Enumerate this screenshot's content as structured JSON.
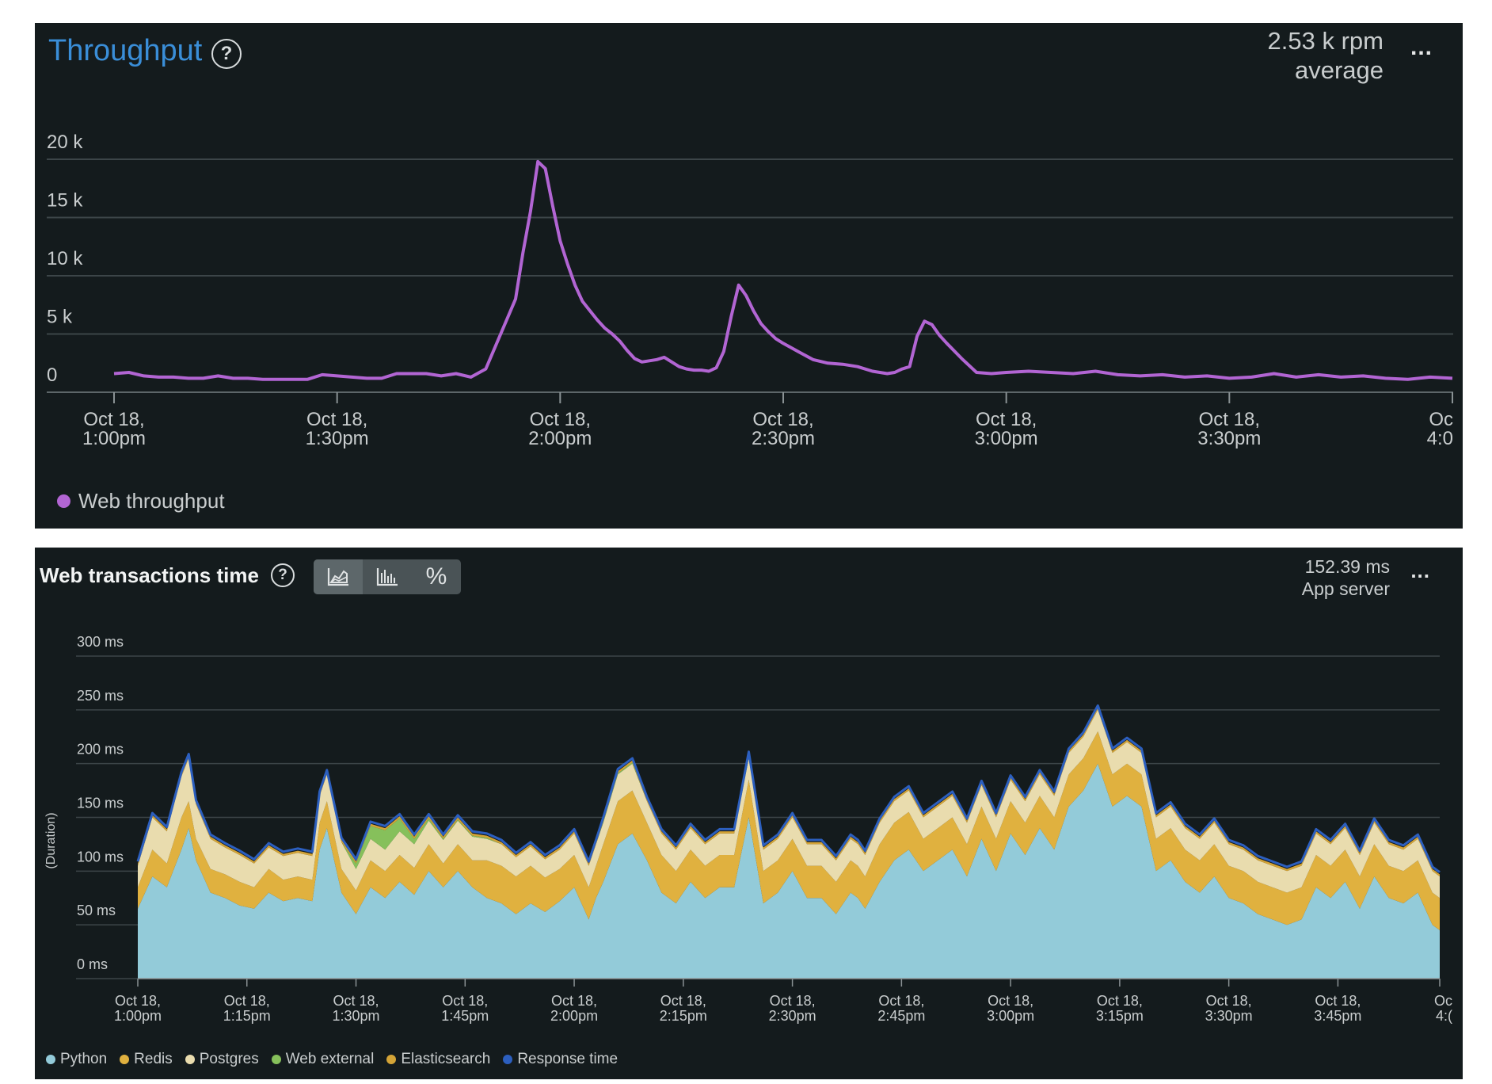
{
  "throughput_panel": {
    "title": "Throughput",
    "help_icon": "?",
    "summary_value": "2.53 k rpm",
    "summary_label": "average",
    "menu_label": "...",
    "legend": [
      {
        "label": "Web throughput",
        "color": "#b265d3"
      }
    ]
  },
  "webtx_panel": {
    "title": "Web transactions time",
    "help_icon": "?",
    "toggle_icons": [
      "area-chart-icon",
      "histogram-icon",
      "percent-icon"
    ],
    "toggle_percent_label": "%",
    "summary_value": "152.39 ms",
    "summary_label": "App server",
    "menu_label": "...",
    "legend": [
      {
        "label": "Python",
        "color": "#93cbd9"
      },
      {
        "label": "Redis",
        "color": "#e0b13f"
      },
      {
        "label": "Postgres",
        "color": "#e9dcae"
      },
      {
        "label": "Web external",
        "color": "#86c05b"
      },
      {
        "label": "Elasticsearch",
        "color": "#d4a437"
      },
      {
        "label": "Response time",
        "color": "#2c5fbf"
      }
    ]
  },
  "chart_data": [
    {
      "type": "line",
      "title": "Throughput",
      "ylabel": "",
      "ylim": [
        0,
        20000
      ],
      "y_ticks": [
        "20 k",
        "15 k",
        "10 k",
        "5 k",
        "0"
      ],
      "y_tick_values": [
        20000,
        15000,
        10000,
        5000,
        0
      ],
      "x_tick_labels": [
        [
          "Oct 18,",
          "1:00pm"
        ],
        [
          "Oct 18,",
          "1:30pm"
        ],
        [
          "Oct 18,",
          "2:00pm"
        ],
        [
          "Oct 18,",
          "2:30pm"
        ],
        [
          "Oct 18,",
          "3:00pm"
        ],
        [
          "Oct 18,",
          "3:30pm"
        ],
        [
          "Oc",
          "4:0"
        ]
      ],
      "x_tick_minutes": [
        0,
        30,
        60,
        90,
        120,
        150,
        180
      ],
      "x_range_minutes": [
        0,
        180
      ],
      "series": [
        {
          "name": "Web throughput",
          "color": "#b265d3",
          "x_minutes": [
            0,
            2,
            4,
            6,
            8,
            10,
            12,
            14,
            16,
            18,
            20,
            22,
            24,
            26,
            28,
            30,
            32,
            34,
            36,
            38,
            40,
            42,
            44,
            46,
            48,
            50,
            52,
            54,
            55,
            56,
            57,
            58,
            59,
            60,
            61,
            62,
            63,
            64,
            65,
            66,
            67,
            68,
            69,
            70,
            71,
            72,
            73,
            74,
            75,
            76,
            77,
            78,
            79,
            80,
            81,
            82,
            83,
            84,
            85,
            86,
            87,
            88,
            89,
            90,
            92,
            94,
            96,
            98,
            100,
            102,
            104,
            105,
            106,
            107,
            108,
            109,
            110,
            111,
            112,
            114,
            116,
            118,
            120,
            123,
            126,
            129,
            132,
            135,
            138,
            141,
            144,
            147,
            150,
            153,
            156,
            159,
            162,
            165,
            168,
            171,
            174,
            177,
            180
          ],
          "y": [
            1600,
            1700,
            1400,
            1300,
            1300,
            1200,
            1200,
            1400,
            1200,
            1200,
            1100,
            1100,
            1100,
            1100,
            1500,
            1400,
            1300,
            1200,
            1200,
            1600,
            1600,
            1600,
            1400,
            1600,
            1300,
            2000,
            5000,
            8000,
            12000,
            15500,
            19800,
            19200,
            16000,
            13000,
            11000,
            9200,
            7800,
            7000,
            6200,
            5500,
            5000,
            4400,
            3600,
            2900,
            2600,
            2700,
            2800,
            3000,
            2600,
            2200,
            2000,
            1900,
            1900,
            1800,
            2100,
            3500,
            6500,
            9200,
            8300,
            7000,
            5900,
            5200,
            4600,
            4200,
            3500,
            2800,
            2500,
            2400,
            2200,
            1800,
            1600,
            1700,
            2000,
            2200,
            4800,
            6100,
            5800,
            4900,
            4200,
            2900,
            1700,
            1600,
            1700,
            1800,
            1700,
            1600,
            1800,
            1500,
            1400,
            1500,
            1300,
            1400,
            1200,
            1300,
            1600,
            1300,
            1500,
            1300,
            1400,
            1200,
            1100,
            1300,
            1200
          ]
        }
      ]
    },
    {
      "type": "area",
      "title": "Web transactions time",
      "ylabel": "(Duration)",
      "ylim": [
        0,
        300
      ],
      "y_ticks": [
        "300 ms",
        "250 ms",
        "200 ms",
        "150 ms",
        "100 ms",
        "50 ms",
        "0 ms"
      ],
      "y_tick_values": [
        300,
        250,
        200,
        150,
        100,
        50,
        0
      ],
      "x_tick_labels": [
        [
          "Oct 18,",
          "1:00pm"
        ],
        [
          "Oct 18,",
          "1:15pm"
        ],
        [
          "Oct 18,",
          "1:30pm"
        ],
        [
          "Oct 18,",
          "1:45pm"
        ],
        [
          "Oct 18,",
          "2:00pm"
        ],
        [
          "Oct 18,",
          "2:15pm"
        ],
        [
          "Oct 18,",
          "2:30pm"
        ],
        [
          "Oct 18,",
          "2:45pm"
        ],
        [
          "Oct 18,",
          "3:00pm"
        ],
        [
          "Oct 18,",
          "3:15pm"
        ],
        [
          "Oct 18,",
          "3:30pm"
        ],
        [
          "Oct 18,",
          "3:45pm"
        ],
        [
          "Oc",
          "4:("
        ]
      ],
      "x_tick_minutes": [
        0,
        15,
        30,
        45,
        60,
        75,
        90,
        105,
        120,
        135,
        150,
        165,
        180
      ],
      "x_range_minutes": [
        0,
        179
      ],
      "stacked": true,
      "x_minutes": [
        0,
        2,
        4,
        6,
        7,
        8,
        10,
        12,
        14,
        16,
        18,
        20,
        22,
        24,
        25,
        26,
        28,
        30,
        32,
        34,
        36,
        38,
        40,
        42,
        44,
        46,
        48,
        50,
        52,
        54,
        56,
        58,
        60,
        62,
        63,
        64,
        66,
        68,
        70,
        72,
        74,
        76,
        78,
        80,
        82,
        84,
        86,
        88,
        90,
        92,
        94,
        96,
        98,
        99,
        100,
        102,
        104,
        106,
        108,
        110,
        112,
        114,
        116,
        118,
        120,
        122,
        124,
        126,
        128,
        130,
        132,
        134,
        136,
        138,
        140,
        142,
        144,
        146,
        148,
        150,
        152,
        154,
        156,
        158,
        160,
        162,
        164,
        166,
        168,
        170,
        172,
        174,
        176,
        178,
        179
      ],
      "series": [
        {
          "name": "Python",
          "color": "#93cbd9",
          "values": [
            65,
            95,
            85,
            120,
            140,
            110,
            80,
            75,
            68,
            65,
            80,
            72,
            75,
            72,
            120,
            140,
            80,
            60,
            85,
            75,
            90,
            78,
            100,
            85,
            100,
            85,
            75,
            70,
            60,
            70,
            62,
            72,
            85,
            55,
            75,
            90,
            125,
            135,
            110,
            80,
            70,
            90,
            75,
            85,
            85,
            150,
            70,
            80,
            100,
            75,
            75,
            60,
            80,
            75,
            65,
            90,
            110,
            120,
            100,
            110,
            120,
            95,
            130,
            100,
            135,
            115,
            140,
            120,
            160,
            175,
            200,
            160,
            170,
            160,
            100,
            110,
            90,
            80,
            95,
            75,
            70,
            60,
            55,
            50,
            55,
            85,
            75,
            90,
            65,
            95,
            75,
            70,
            80,
            50,
            45
          ]
        },
        {
          "name": "Redis",
          "color": "#e0b13f",
          "values": [
            20,
            25,
            22,
            30,
            25,
            20,
            22,
            22,
            22,
            20,
            22,
            20,
            20,
            20,
            25,
            25,
            22,
            22,
            25,
            25,
            25,
            25,
            25,
            22,
            25,
            25,
            35,
            35,
            35,
            35,
            32,
            30,
            30,
            30,
            30,
            35,
            40,
            40,
            35,
            35,
            30,
            30,
            30,
            30,
            30,
            35,
            30,
            30,
            30,
            30,
            30,
            30,
            30,
            30,
            30,
            35,
            35,
            35,
            30,
            30,
            30,
            30,
            30,
            30,
            30,
            30,
            30,
            30,
            30,
            30,
            30,
            30,
            30,
            30,
            30,
            30,
            30,
            30,
            30,
            30,
            30,
            30,
            30,
            30,
            30,
            30,
            30,
            30,
            30,
            30,
            30,
            30,
            30,
            30,
            30
          ]
        },
        {
          "name": "Postgres",
          "color": "#e9dcae",
          "values": [
            20,
            30,
            30,
            38,
            40,
            32,
            28,
            25,
            25,
            22,
            20,
            22,
            22,
            22,
            25,
            25,
            25,
            20,
            20,
            20,
            22,
            22,
            22,
            22,
            22,
            22,
            20,
            20,
            18,
            18,
            17,
            18,
            20,
            20,
            20,
            20,
            25,
            25,
            20,
            20,
            20,
            20,
            20,
            20,
            20,
            20,
            20,
            20,
            20,
            20,
            20,
            20,
            20,
            20,
            20,
            20,
            20,
            20,
            20,
            20,
            20,
            20,
            20,
            20,
            20,
            20,
            20,
            20,
            20,
            20,
            20,
            20,
            20,
            20,
            20,
            20,
            20,
            20,
            20,
            20,
            20,
            20,
            20,
            20,
            20,
            20,
            20,
            20,
            20,
            20,
            20,
            20,
            20,
            20,
            20
          ]
        },
        {
          "name": "Web external",
          "color": "#86c05b",
          "values": [
            0,
            0,
            0,
            0,
            0,
            0,
            0,
            0,
            0,
            0,
            0,
            0,
            0,
            0,
            0,
            0,
            0,
            5,
            12,
            18,
            12,
            5,
            2,
            1,
            1,
            1,
            1,
            0,
            0,
            0,
            0,
            0,
            0,
            0,
            0,
            1,
            1,
            1,
            0,
            0,
            0,
            0,
            0,
            0,
            0,
            2,
            0,
            0,
            0,
            0,
            0,
            0,
            0,
            0,
            0,
            0,
            0,
            0,
            0,
            0,
            0,
            0,
            0,
            0,
            0,
            0,
            0,
            0,
            0,
            0,
            0,
            0,
            0,
            0,
            0,
            0,
            0,
            0,
            0,
            0,
            0,
            0,
            0,
            0,
            0,
            0,
            0,
            0,
            0,
            0,
            0,
            0,
            0,
            0,
            0
          ]
        },
        {
          "name": "Elasticsearch",
          "color": "#d4a437",
          "values": [
            2,
            2,
            2,
            2,
            2,
            2,
            2,
            2,
            2,
            2,
            2,
            2,
            2,
            2,
            2,
            2,
            2,
            2,
            2,
            2,
            2,
            2,
            2,
            2,
            2,
            2,
            2,
            2,
            2,
            2,
            2,
            2,
            2,
            2,
            2,
            2,
            2,
            2,
            2,
            2,
            2,
            2,
            2,
            2,
            2,
            2,
            2,
            2,
            2,
            2,
            2,
            2,
            2,
            2,
            2,
            2,
            2,
            2,
            2,
            2,
            2,
            2,
            2,
            2,
            2,
            2,
            2,
            2,
            2,
            2,
            2,
            2,
            2,
            2,
            2,
            2,
            2,
            2,
            2,
            2,
            2,
            2,
            2,
            2,
            2,
            2,
            2,
            2,
            2,
            2,
            2,
            2,
            2,
            2,
            2
          ]
        },
        {
          "name": "Response time",
          "color": "#2c5fbf",
          "values": [
            2,
            2,
            2,
            2,
            2,
            2,
            2,
            2,
            2,
            2,
            2,
            2,
            2,
            2,
            2,
            2,
            2,
            2,
            2,
            2,
            2,
            2,
            2,
            2,
            2,
            2,
            2,
            2,
            2,
            2,
            2,
            2,
            2,
            2,
            2,
            2,
            2,
            2,
            2,
            2,
            2,
            2,
            2,
            2,
            2,
            2,
            2,
            2,
            2,
            2,
            2,
            2,
            2,
            2,
            2,
            2,
            2,
            2,
            2,
            2,
            2,
            2,
            2,
            2,
            2,
            2,
            2,
            2,
            2,
            2,
            2,
            2,
            2,
            2,
            2,
            2,
            2,
            2,
            2,
            2,
            2,
            2,
            2,
            2,
            2,
            2,
            2,
            2,
            2,
            2,
            2,
            2,
            2,
            2,
            2
          ]
        }
      ]
    }
  ]
}
